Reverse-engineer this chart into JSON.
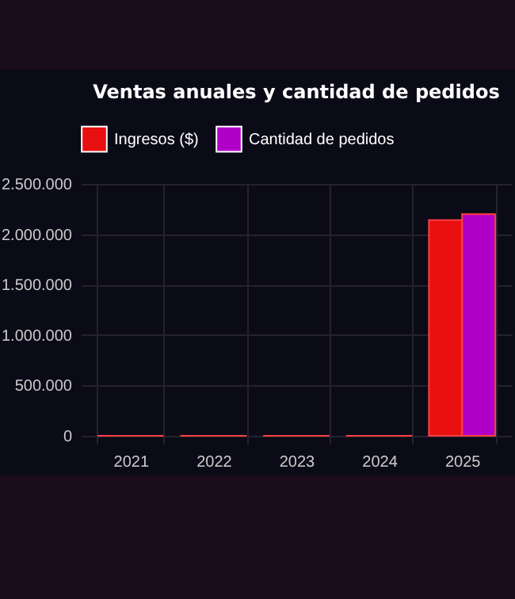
{
  "chart_data": {
    "type": "bar",
    "title": "Ventas anuales y cantidad de pedidos",
    "categories": [
      "2021",
      "2022",
      "2023",
      "2024",
      "2025"
    ],
    "series": [
      {
        "name": "Ingresos ($)",
        "color": "#e81010",
        "values": [
          0,
          0,
          0,
          0,
          2140000
        ]
      },
      {
        "name": "Cantidad de pedidos",
        "color": "#b000c8",
        "values": [
          0,
          0,
          0,
          0,
          2200000
        ]
      }
    ],
    "ylim": [
      0,
      2500000
    ],
    "yticks": [
      0,
      {
        "value": 500000,
        "label": "500.000"
      },
      {
        "value": 1000000,
        "label": "1.000.000"
      },
      {
        "value": 1500000,
        "label": "1.500.000"
      },
      {
        "value": 2000000,
        "label": "2.000.000"
      },
      {
        "value": 2500000,
        "label": "2.500.000"
      }
    ],
    "grid": true,
    "legend": "top"
  }
}
